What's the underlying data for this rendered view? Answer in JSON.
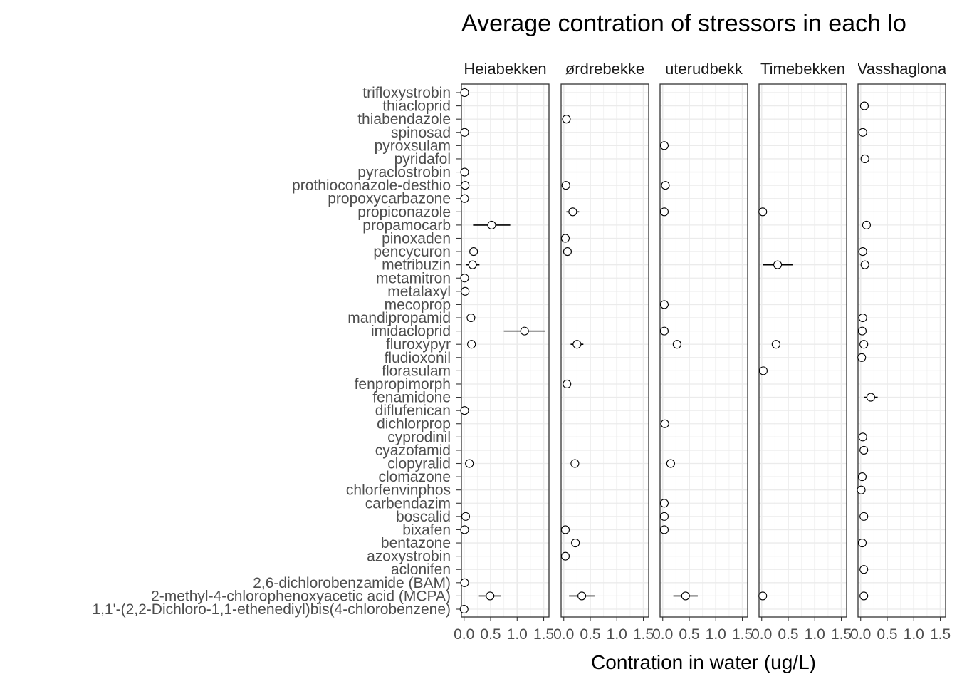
{
  "chart_data": {
    "type": "scatter",
    "title": "Average contration of stressors in each lo",
    "xlabel": "Contration in water (ug/L)",
    "ylabel": "",
    "xlim": [
      -0.05,
      1.6
    ],
    "x_ticks": [
      0.0,
      0.5,
      1.0,
      1.5
    ],
    "x_tick_labels": [
      "0.0",
      "0.5",
      "1.0",
      "1.5"
    ],
    "grid": true,
    "categories": [
      "trifloxystrobin",
      "thiacloprid",
      "thiabendazole",
      "spinosad",
      "pyroxsulam",
      "pyridafol",
      "pyraclostrobin",
      "prothioconazole-desthio",
      "propoxycarbazone",
      "propiconazole",
      "propamocarb",
      "pinoxaden",
      "pencycuron",
      "metribuzin",
      "metamitron",
      "metalaxyl",
      "mecoprop",
      "mandipropamid",
      "imidacloprid",
      "fluroxypyr",
      "fludioxonil",
      "florasulam",
      "fenpropimorph",
      "fenamidone",
      "diflufenican",
      "dichlorprop",
      "cyprodinil",
      "cyazofamid",
      "clopyralid",
      "clomazone",
      "chlorfenvinphos",
      "carbendazim",
      "boscalid",
      "bixafen",
      "bentazone",
      "azoxystrobin",
      "aclonifen",
      "2,6-dichlorobenzamide (BAM)",
      "2-methyl-4-chlorophenoxyacetic acid (MCPA)",
      "1,1'-(2,2-Dichloro-1,1-ethenediyl)bis(4-chlorobenzene)"
    ],
    "panels": [
      {
        "label": "Heiabekken",
        "points": [
          {
            "cat": "trifloxystrobin",
            "x": 0.01
          },
          {
            "cat": "spinosad",
            "x": 0.01
          },
          {
            "cat": "pyraclostrobin",
            "x": 0.01
          },
          {
            "cat": "prothioconazole-desthio",
            "x": 0.02
          },
          {
            "cat": "propoxycarbazone",
            "x": 0.01
          },
          {
            "cat": "propamocarb",
            "x": 0.52,
            "lo": 0.17,
            "hi": 0.87
          },
          {
            "cat": "pencycuron",
            "x": 0.18
          },
          {
            "cat": "metribuzin",
            "x": 0.16,
            "lo": 0.03,
            "hi": 0.29
          },
          {
            "cat": "metamitron",
            "x": 0.01
          },
          {
            "cat": "metalaxyl",
            "x": 0.02
          },
          {
            "cat": "mandipropamid",
            "x": 0.13,
            "lo": 0.05,
            "hi": 0.21
          },
          {
            "cat": "imidacloprid",
            "x": 1.14,
            "lo": 0.75,
            "hi": 1.53
          },
          {
            "cat": "fluroxypyr",
            "x": 0.14
          },
          {
            "cat": "diflufenican",
            "x": 0.01
          },
          {
            "cat": "clopyralid",
            "x": 0.1
          },
          {
            "cat": "boscalid",
            "x": 0.03
          },
          {
            "cat": "bixafen",
            "x": 0.01
          },
          {
            "cat": "2,6-dichlorobenzamide (BAM)",
            "x": 0.01
          },
          {
            "cat": "2-methyl-4-chlorophenoxyacetic acid (MCPA)",
            "x": 0.49,
            "lo": 0.28,
            "hi": 0.7
          },
          {
            "cat": "1,1'-(2,2-Dichloro-1,1-ethenediyl)bis(4-chlorobenzene)",
            "x": 0.0
          }
        ]
      },
      {
        "label": "ørdrebekke",
        "points": [
          {
            "cat": "thiabendazole",
            "x": 0.05
          },
          {
            "cat": "prothioconazole-desthio",
            "x": 0.04
          },
          {
            "cat": "propiconazole",
            "x": 0.17,
            "lo": 0.05,
            "hi": 0.29
          },
          {
            "cat": "pinoxaden",
            "x": 0.03
          },
          {
            "cat": "pencycuron",
            "x": 0.07
          },
          {
            "cat": "fluroxypyr",
            "x": 0.25,
            "lo": 0.13,
            "hi": 0.37
          },
          {
            "cat": "fenpropimorph",
            "x": 0.06
          },
          {
            "cat": "clopyralid",
            "x": 0.21
          },
          {
            "cat": "bixafen",
            "x": 0.03
          },
          {
            "cat": "bentazone",
            "x": 0.22
          },
          {
            "cat": "azoxystrobin",
            "x": 0.03
          },
          {
            "cat": "2-methyl-4-chlorophenoxyacetic acid (MCPA)",
            "x": 0.34,
            "lo": 0.1,
            "hi": 0.58
          }
        ]
      },
      {
        "label": "uterudbekk",
        "points": [
          {
            "cat": "pyroxsulam",
            "x": 0.03
          },
          {
            "cat": "prothioconazole-desthio",
            "x": 0.05
          },
          {
            "cat": "propiconazole",
            "x": 0.03
          },
          {
            "cat": "mecoprop",
            "x": 0.03
          },
          {
            "cat": "imidacloprid",
            "x": 0.03
          },
          {
            "cat": "fluroxypyr",
            "x": 0.27
          },
          {
            "cat": "dichlorprop",
            "x": 0.04
          },
          {
            "cat": "clopyralid",
            "x": 0.15
          },
          {
            "cat": "carbendazim",
            "x": 0.03
          },
          {
            "cat": "boscalid",
            "x": 0.03
          },
          {
            "cat": "bixafen",
            "x": 0.03
          },
          {
            "cat": "2-methyl-4-chlorophenoxyacetic acid (MCPA)",
            "x": 0.43,
            "lo": 0.2,
            "hi": 0.66
          }
        ]
      },
      {
        "label": "Timebekken",
        "points": [
          {
            "cat": "propiconazole",
            "x": 0.02
          },
          {
            "cat": "metribuzin",
            "x": 0.3,
            "lo": 0.02,
            "hi": 0.58
          },
          {
            "cat": "fluroxypyr",
            "x": 0.27
          },
          {
            "cat": "florasulam",
            "x": 0.03
          },
          {
            "cat": "2-methyl-4-chlorophenoxyacetic acid (MCPA)",
            "x": 0.02
          }
        ]
      },
      {
        "label": "Vasshaglona",
        "points": [
          {
            "cat": "thiacloprid",
            "x": 0.07
          },
          {
            "cat": "spinosad",
            "x": 0.04
          },
          {
            "cat": "pyridafol",
            "x": 0.08
          },
          {
            "cat": "propamocarb",
            "x": 0.11
          },
          {
            "cat": "pencycuron",
            "x": 0.04
          },
          {
            "cat": "metribuzin",
            "x": 0.08
          },
          {
            "cat": "mandipropamid",
            "x": 0.04
          },
          {
            "cat": "imidacloprid",
            "x": 0.03
          },
          {
            "cat": "fluroxypyr",
            "x": 0.06
          },
          {
            "cat": "fludioxonil",
            "x": 0.02
          },
          {
            "cat": "fenamidone",
            "x": 0.19,
            "lo": 0.06,
            "hi": 0.32
          },
          {
            "cat": "cyprodinil",
            "x": 0.04
          },
          {
            "cat": "cyazofamid",
            "x": 0.06
          },
          {
            "cat": "clomazone",
            "x": 0.03
          },
          {
            "cat": "chlorfenvinphos",
            "x": 0.01
          },
          {
            "cat": "boscalid",
            "x": 0.06
          },
          {
            "cat": "bentazone",
            "x": 0.03
          },
          {
            "cat": "aclonifen",
            "x": 0.06
          },
          {
            "cat": "2-methyl-4-chlorophenoxyacetic acid (MCPA)",
            "x": 0.06
          }
        ]
      }
    ]
  }
}
